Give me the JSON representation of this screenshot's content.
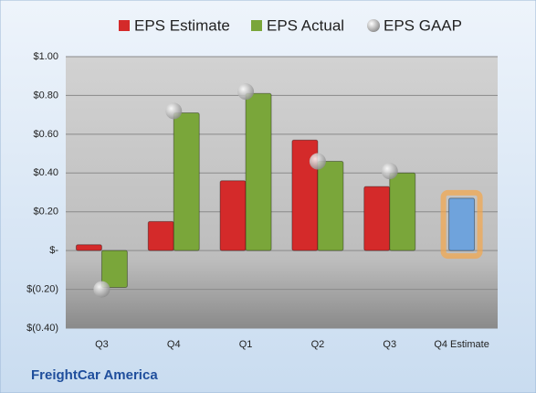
{
  "chart_data": {
    "type": "bar",
    "footer": "FreightCar America",
    "categories": [
      "Q3",
      "Q4",
      "Q1",
      "Q2",
      "Q3",
      "Q4 Estimate"
    ],
    "series": [
      {
        "name": "EPS Estimate",
        "color": "#d42a2a",
        "values": [
          0.03,
          0.15,
          0.36,
          0.57,
          0.33,
          null
        ]
      },
      {
        "name": "EPS Actual",
        "color": "#7aa63a",
        "values": [
          -0.19,
          0.71,
          0.81,
          0.46,
          0.4,
          null
        ]
      },
      {
        "name": "EPS GAAP",
        "color": "#b0b0b0",
        "marker": "circle",
        "values": [
          -0.2,
          0.72,
          0.82,
          0.46,
          0.41,
          null
        ]
      }
    ],
    "forecast": {
      "color": "#6fa3dc",
      "glow": "#f5a64a",
      "values": [
        null,
        null,
        null,
        null,
        null,
        0.27
      ]
    },
    "ylim": [
      -0.4,
      1.0
    ],
    "yticks": [
      {
        "value": -0.4,
        "label": "$(0.40)"
      },
      {
        "value": -0.2,
        "label": "$(0.20)"
      },
      {
        "value": 0,
        "label": "$-"
      },
      {
        "value": 0.2,
        "label": "$0.20"
      },
      {
        "value": 0.4,
        "label": "$0.40"
      },
      {
        "value": 0.6,
        "label": "$0.60"
      },
      {
        "value": 0.8,
        "label": "$0.80"
      },
      {
        "value": 1.0,
        "label": "$1.00"
      }
    ],
    "grid": true,
    "legend": "top"
  }
}
